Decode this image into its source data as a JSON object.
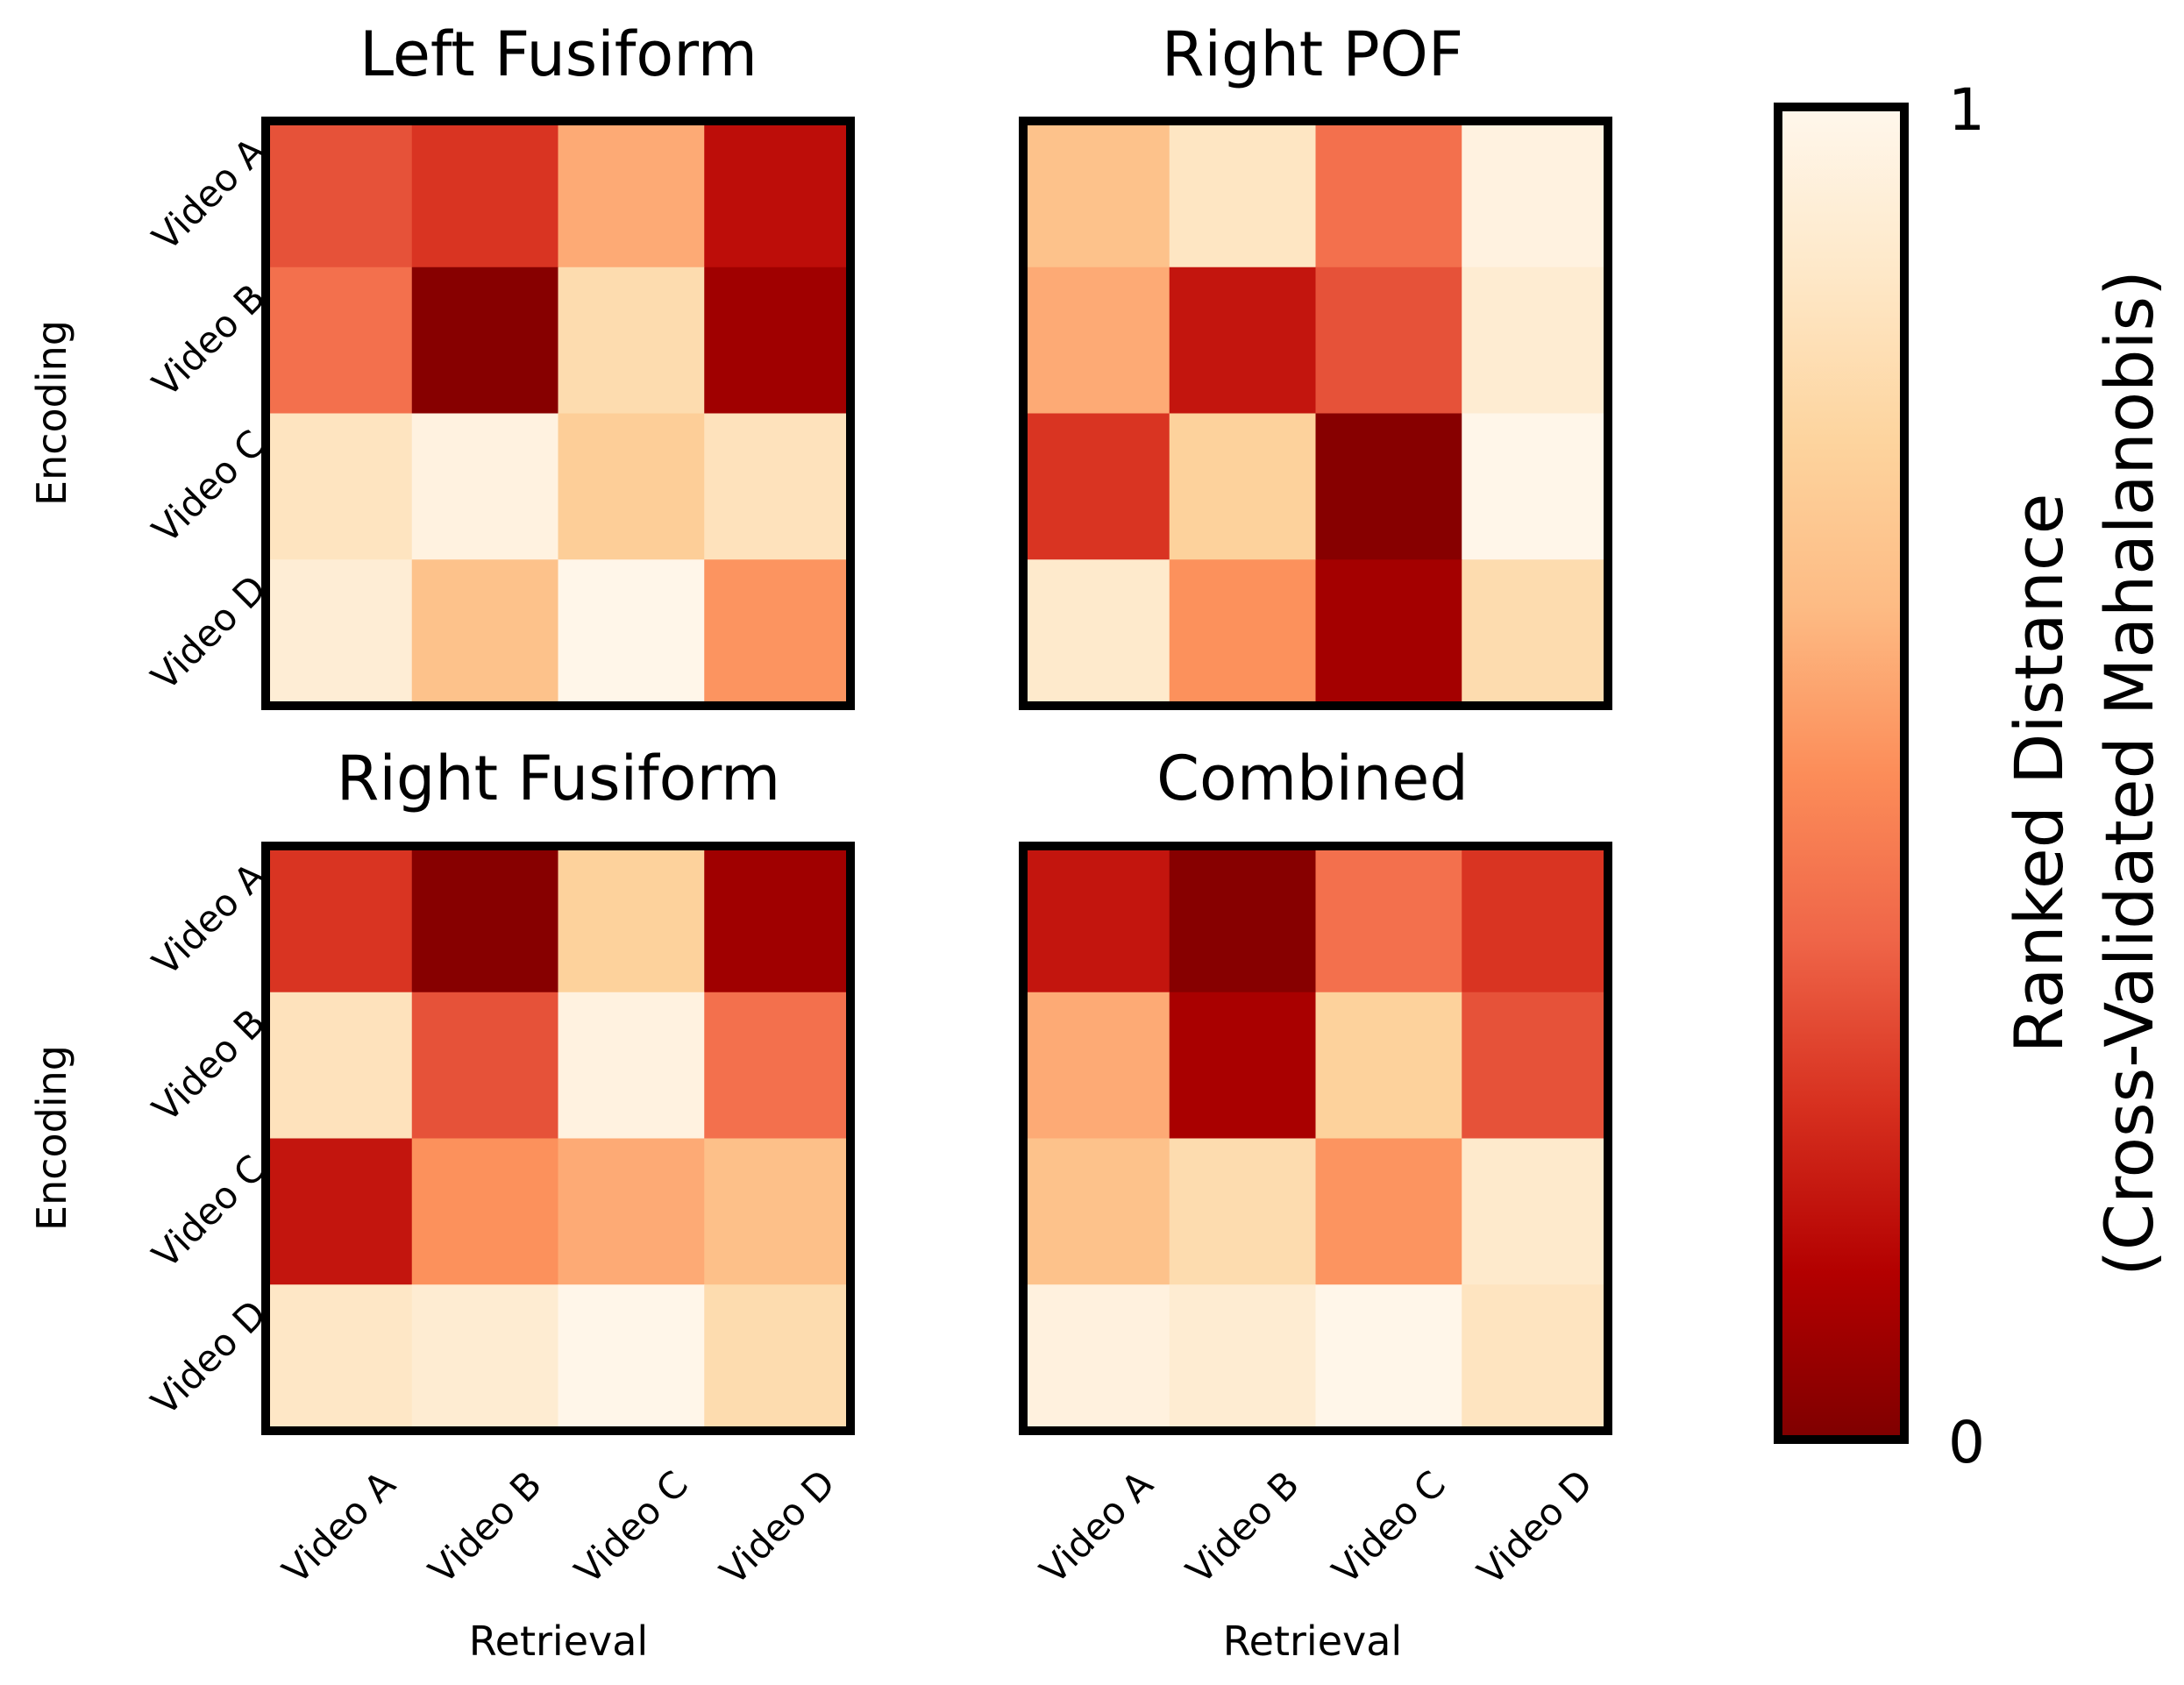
{
  "chart_data": [
    {
      "type": "heatmap",
      "title": "Left Fusiform",
      "ylabel": "Encoding",
      "xlabel": "",
      "row_labels": [
        "Video A",
        "Video B",
        "Video C",
        "Video D"
      ],
      "col_labels": [],
      "values": [
        [
          0.33,
          0.26,
          0.58,
          0.16
        ],
        [
          0.41,
          0.02,
          0.8,
          0.08
        ],
        [
          0.85,
          0.96,
          0.72,
          0.84
        ],
        [
          0.92,
          0.66,
          0.99,
          0.52
        ]
      ]
    },
    {
      "type": "heatmap",
      "title": "Right POF",
      "ylabel": "",
      "xlabel": "",
      "row_labels": [],
      "col_labels": [],
      "values": [
        [
          0.66,
          0.86,
          0.41,
          0.96
        ],
        [
          0.58,
          0.18,
          0.33,
          0.91
        ],
        [
          0.26,
          0.74,
          0.02,
          0.99
        ],
        [
          0.89,
          0.51,
          0.09,
          0.8
        ]
      ]
    },
    {
      "type": "heatmap",
      "title": "Right Fusiform",
      "ylabel": "Encoding",
      "xlabel": "Retrieval",
      "row_labels": [
        "Video A",
        "Video B",
        "Video C",
        "Video D"
      ],
      "col_labels": [
        "Video A",
        "Video B",
        "Video C",
        "Video D"
      ],
      "values": [
        [
          0.26,
          0.02,
          0.74,
          0.08
        ],
        [
          0.84,
          0.33,
          0.96,
          0.41
        ],
        [
          0.18,
          0.51,
          0.58,
          0.65
        ],
        [
          0.87,
          0.91,
          0.99,
          0.8
        ]
      ]
    },
    {
      "type": "heatmap",
      "title": "Combined",
      "ylabel": "",
      "xlabel": "Retrieval",
      "row_labels": [],
      "col_labels": [
        "Video A",
        "Video B",
        "Video C",
        "Video D"
      ],
      "values": [
        [
          0.18,
          0.02,
          0.41,
          0.26
        ],
        [
          0.58,
          0.1,
          0.74,
          0.33
        ],
        [
          0.66,
          0.8,
          0.52,
          0.89
        ],
        [
          0.95,
          0.91,
          0.99,
          0.85
        ]
      ]
    }
  ],
  "colorbar": {
    "label_line1": "Ranked Distance",
    "label_line2": "(Cross-Validated Mahalanobis)",
    "max_label": "1",
    "min_label": "0",
    "range": [
      0,
      1
    ],
    "colormap": "OrRd_r",
    "stops": [
      "#7f0000",
      "#b30000",
      "#d7301f",
      "#ef6548",
      "#fc8d59",
      "#fdbb84",
      "#fdd49e",
      "#fee8c8",
      "#fff7ec"
    ]
  }
}
